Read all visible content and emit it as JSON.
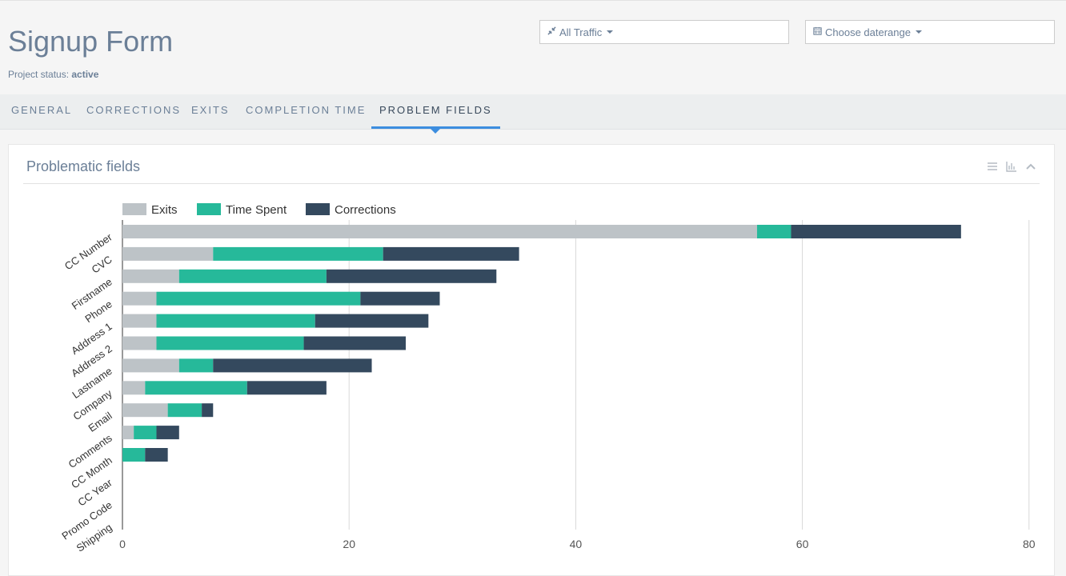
{
  "page": {
    "title": "Signup Form",
    "status_label": "Project status:",
    "status_value": "active"
  },
  "filters": {
    "traffic": "All Traffic",
    "traffic_icon": "compress-arrows-icon",
    "daterange": "Choose daterange",
    "daterange_icon": "calendar-icon"
  },
  "tabs": [
    {
      "label": "GENERAL",
      "active": false
    },
    {
      "label": "CORRECTIONS",
      "active": false
    },
    {
      "label": "EXITS",
      "active": false
    },
    {
      "label": "COMPLETION TIME",
      "active": false
    },
    {
      "label": "PROBLEM FIELDS",
      "active": true
    }
  ],
  "panel": {
    "title": "Problematic fields",
    "tools": [
      "list-icon",
      "bar-chart-icon",
      "chevron-up-icon"
    ]
  },
  "colors": {
    "exits": "#bdc3c7",
    "time_spent": "#26b99a",
    "corrections": "#34495e",
    "accent": "#3c8ddf"
  },
  "chart_data": {
    "type": "bar",
    "orientation": "horizontal",
    "stacked": true,
    "categories": [
      "CC Number",
      "CVC",
      "Firstname",
      "Phone",
      "Address 1",
      "Address 2",
      "Lastname",
      "Company",
      "Email",
      "Comments",
      "CC Month",
      "CC Year",
      "Promo Code",
      "Shipping"
    ],
    "series": [
      {
        "name": "Exits",
        "color": "#bdc3c7",
        "values": [
          56,
          8,
          5,
          3,
          3,
          3,
          5,
          2,
          4,
          1,
          0,
          0,
          0,
          0
        ]
      },
      {
        "name": "Time Spent",
        "color": "#26b99a",
        "values": [
          3,
          15,
          13,
          18,
          14,
          13,
          3,
          9,
          3,
          2,
          2,
          0,
          0,
          0
        ]
      },
      {
        "name": "Corrections",
        "color": "#34495e",
        "values": [
          15,
          12,
          15,
          7,
          10,
          9,
          14,
          7,
          1,
          2,
          2,
          0,
          0,
          0
        ]
      }
    ],
    "xticks": [
      0,
      20,
      40,
      60,
      80
    ],
    "xlim": [
      0,
      80
    ],
    "grid": true,
    "legend": "top-left"
  }
}
